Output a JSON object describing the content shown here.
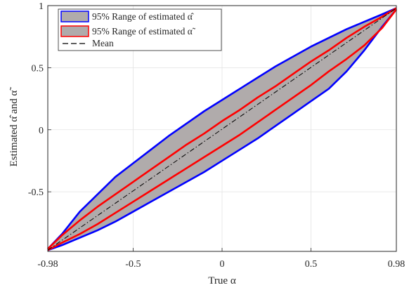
{
  "chart_data": {
    "type": "area",
    "xlabel": "True α",
    "ylabel": "Estimated  α̂ and α̃",
    "xlim": [
      -0.98,
      0.98
    ],
    "ylim": [
      -0.98,
      1.0
    ],
    "x_ticks": [
      -0.98,
      -0.5,
      0,
      0.5,
      0.98
    ],
    "x_tick_labels": [
      "-0.98",
      "-0.5",
      "0",
      "0.5",
      "0.98"
    ],
    "y_ticks": [
      -0.5,
      0,
      0.5,
      1
    ],
    "y_tick_labels": [
      "-0.5",
      "0",
      "0.5",
      "1"
    ],
    "grid": true,
    "legend_position": "top-left",
    "series": [
      {
        "name": "95% Range of estimated α̂",
        "kind": "band",
        "fill_color": "#b0abab",
        "edge_color": "#0000ff",
        "x": [
          -0.98,
          -0.9,
          -0.8,
          -0.7,
          -0.6,
          -0.5,
          -0.4,
          -0.3,
          -0.2,
          -0.1,
          0,
          0.1,
          0.2,
          0.3,
          0.4,
          0.5,
          0.6,
          0.7,
          0.8,
          0.9,
          0.98
        ],
        "lower": [
          -0.97,
          -0.93,
          -0.87,
          -0.81,
          -0.74,
          -0.66,
          -0.58,
          -0.5,
          -0.42,
          -0.34,
          -0.25,
          -0.16,
          -0.07,
          0.03,
          0.13,
          0.23,
          0.33,
          0.47,
          0.64,
          0.83,
          0.97
        ],
        "upper": [
          -0.96,
          -0.84,
          -0.66,
          -0.52,
          -0.38,
          -0.27,
          -0.16,
          -0.05,
          0.05,
          0.15,
          0.24,
          0.33,
          0.42,
          0.51,
          0.59,
          0.67,
          0.74,
          0.81,
          0.87,
          0.93,
          0.98
        ]
      },
      {
        "name": "95% Range of estimated α̃",
        "kind": "band",
        "fill_color": "#b0abab",
        "edge_color": "#ff0000",
        "x": [
          -0.98,
          -0.9,
          -0.8,
          -0.7,
          -0.6,
          -0.5,
          -0.4,
          -0.3,
          -0.2,
          -0.1,
          0,
          0.1,
          0.2,
          0.3,
          0.4,
          0.5,
          0.6,
          0.7,
          0.8,
          0.9,
          0.98
        ],
        "lower": [
          -0.97,
          -0.91,
          -0.84,
          -0.76,
          -0.67,
          -0.58,
          -0.49,
          -0.4,
          -0.31,
          -0.22,
          -0.13,
          -0.04,
          0.06,
          0.16,
          0.26,
          0.36,
          0.47,
          0.57,
          0.68,
          0.82,
          0.97
        ],
        "upper": [
          -0.96,
          -0.85,
          -0.73,
          -0.62,
          -0.52,
          -0.42,
          -0.32,
          -0.22,
          -0.12,
          -0.03,
          0.07,
          0.16,
          0.26,
          0.35,
          0.45,
          0.55,
          0.64,
          0.74,
          0.83,
          0.91,
          0.98
        ]
      },
      {
        "name": "Mean",
        "kind": "line",
        "color": "#000000",
        "dash": "dashdot",
        "x": [
          -0.98,
          0.98
        ],
        "y": [
          -0.97,
          0.98
        ]
      }
    ]
  }
}
